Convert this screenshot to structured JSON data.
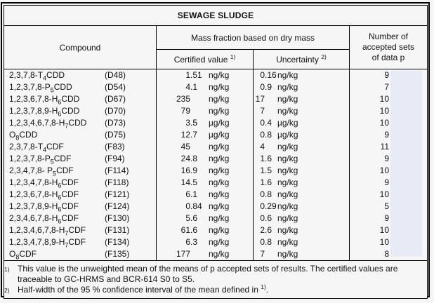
{
  "colors": {
    "background": "#f6f6f6",
    "border": "#000000",
    "text": "#111111",
    "highlight": "#e8eaf6"
  },
  "header": {
    "title": "SEWAGE SLUDGE",
    "compound": "Compound",
    "mass_fraction": "Mass fraction based on dry mass",
    "certified": {
      "label": "Certified value",
      "sup": "1)"
    },
    "uncertainty": {
      "label": "Uncertainty",
      "sup": "2)"
    },
    "accepted_sets": "Number of\naccepted sets\nof data p"
  },
  "table": {
    "rows": [
      {
        "pre": "2,3,7,8-T",
        "sub": "4",
        "post": "CDD",
        "code": "(D48)",
        "value": "1.51",
        "value_unit": "ng/kg",
        "unc": "0.16",
        "unc_unit": "ng/kg",
        "p": "9"
      },
      {
        "pre": "1,2,3,7,8-P",
        "sub": "5",
        "post": "CDD",
        "code": "(D54)",
        "value": "4.1",
        "value_unit": "ng/kg",
        "unc": "0.9",
        "unc_unit": "ng/kg",
        "p": "7"
      },
      {
        "pre": "1,2,3,6,7,8-H",
        "sub": "6",
        "post": "CDD",
        "code": "(D67)",
        "value": "235",
        "value_unit": "ng/kg",
        "unc": "17",
        "unc_unit": "ng/kg",
        "p": "10"
      },
      {
        "pre": "1,2,3,7,8,9-H",
        "sub": "6",
        "post": "CDD",
        "code": "(D70)",
        "value": "79",
        "value_unit": "ng/kg",
        "unc": "7",
        "unc_unit": "ng/kg",
        "p": "10"
      },
      {
        "pre": "1,2,3,4,6,7,8-H",
        "sub": "7",
        "post": "CDD",
        "code": "(D73)",
        "value": "3.5",
        "value_unit": "µg/kg",
        "unc": "0.4",
        "unc_unit": "µg/kg",
        "p": "10"
      },
      {
        "pre": "O",
        "sub": "8",
        "post": "CDD",
        "code": "(D75)",
        "value": "12.7",
        "value_unit": "µg/kg",
        "unc": "0.8",
        "unc_unit": "µg/kg",
        "p": "9"
      },
      {
        "pre": "2,3,7,8-T",
        "sub": "4",
        "post": "CDF",
        "code": "(F83)",
        "value": "45",
        "value_unit": "ng/kg",
        "unc": "4",
        "unc_unit": "ng/kg",
        "p": "11"
      },
      {
        "pre": "1,2,3,7,8-P",
        "sub": "5",
        "post": "CDF",
        "code": "(F94)",
        "value": "24.8",
        "value_unit": "ng/kg",
        "unc": "1.6",
        "unc_unit": "ng/kg",
        "p": "9"
      },
      {
        "pre": "2,3,4,7,8- P",
        "sub": "5",
        "post": "CDF",
        "code": "(F114)",
        "value": "16.9",
        "value_unit": "ng/kg",
        "unc": "1.5",
        "unc_unit": "ng/kg",
        "p": "10"
      },
      {
        "pre": "1,2,3,4,7,8-H",
        "sub": "6",
        "post": "CDF",
        "code": "(F118)",
        "value": "14.5",
        "value_unit": "ng/kg",
        "unc": "1.6",
        "unc_unit": "ng/kg",
        "p": "9"
      },
      {
        "pre": "1,2,3,6,7,8-H",
        "sub": "6",
        "post": "CDF",
        "code": "(F121)",
        "value": "6.1",
        "value_unit": "ng/kg",
        "unc": "0.8",
        "unc_unit": "ng/kg",
        "p": "10"
      },
      {
        "pre": "1,2,3,7,8,9-H",
        "sub": "6",
        "post": "CDF",
        "code": "(F124)",
        "value": "0.84",
        "value_unit": "ng/kg",
        "unc": "0.29",
        "unc_unit": "ng/kg",
        "p": "5"
      },
      {
        "pre": "2,3,4,6,7,8-H",
        "sub": "6",
        "post": "CDF",
        "code": "(F130)",
        "value": "5.6",
        "value_unit": "ng/kg",
        "unc": "0.6",
        "unc_unit": "ng/kg",
        "p": "9"
      },
      {
        "pre": "1,2,3,4,6,7,8-H",
        "sub": "7",
        "post": "CDF",
        "code": "(F131)",
        "value": "61.6",
        "value_unit": "ng/kg",
        "unc": "2.6",
        "unc_unit": "ng/kg",
        "p": "10"
      },
      {
        "pre": "1,2,3,4,7,8,9-H",
        "sub": "7",
        "post": "CDF",
        "code": "(F134)",
        "value": "6.3",
        "value_unit": "ng/kg",
        "unc": "0.8",
        "unc_unit": "ng/kg",
        "p": "10"
      },
      {
        "pre": "O",
        "sub": "8",
        "post": "CDF",
        "code": "(F135)",
        "value": "177",
        "value_unit": "ng/kg",
        "unc": "7",
        "unc_unit": "ng/kg",
        "p": "8"
      }
    ]
  },
  "footnotes": [
    {
      "marker": "1)",
      "text": "This value is the unweighted mean of the means of p accepted sets of results. The certified values are traceable to GC-HRMS and BCR-614 S0 to S5."
    },
    {
      "marker": "2)",
      "text": "Half-width of the 95 % confidence interval of the mean defined in",
      "sup_ref": "1)",
      "tail": "."
    }
  ]
}
